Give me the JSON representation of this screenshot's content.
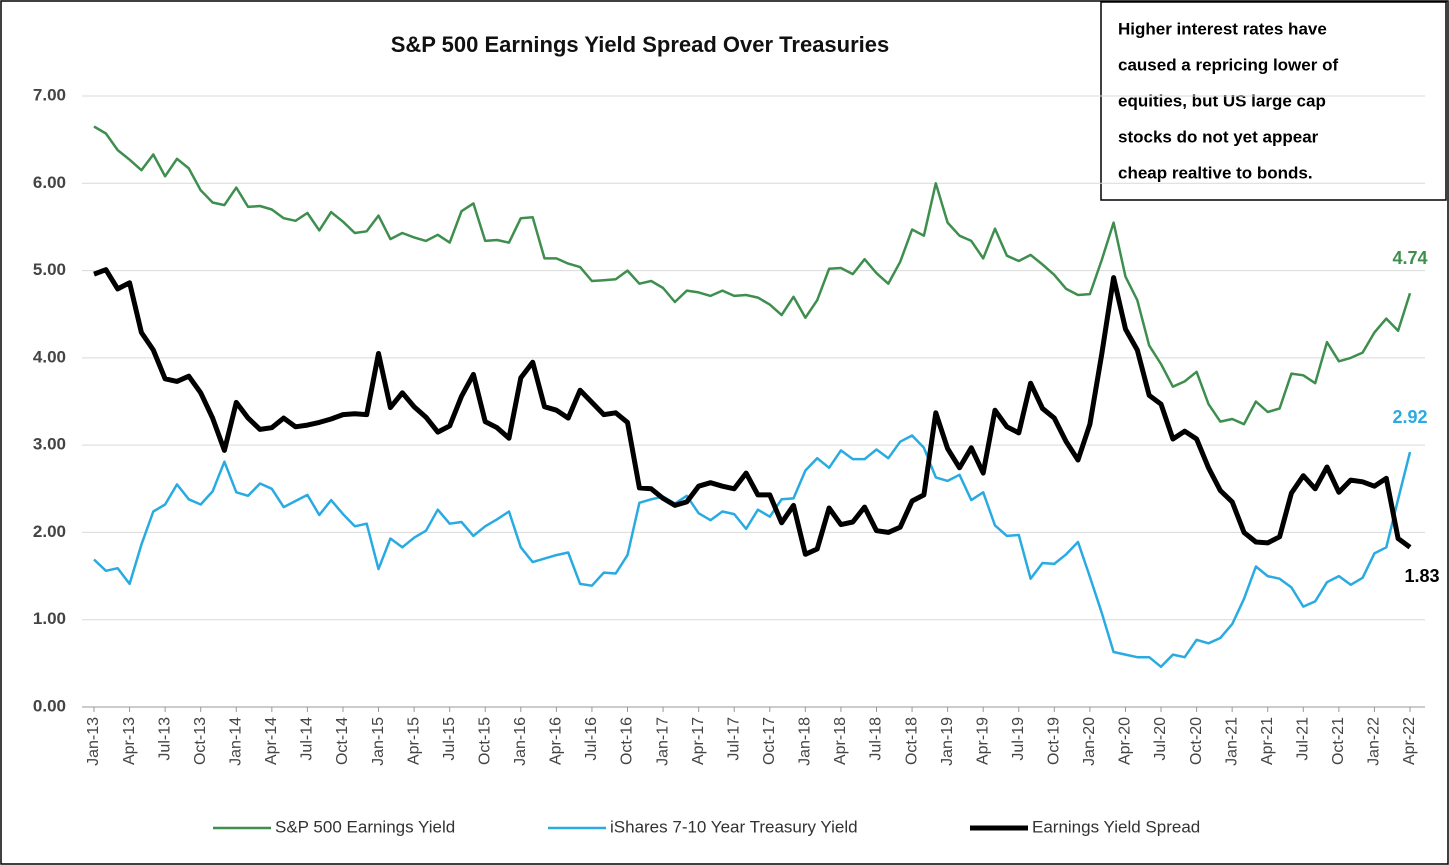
{
  "chart_data": {
    "type": "line",
    "title": "S&P 500 Earnings Yield Spread Over Treasuries",
    "annotation": [
      "Higher interest rates have",
      "caused a repricing lower of",
      "equities, but US large cap",
      "stocks do not yet appear",
      "cheap realtive to bonds."
    ],
    "categories": [
      "Jan-13",
      null,
      null,
      "Apr-13",
      null,
      null,
      "Jul-13",
      null,
      null,
      "Oct-13",
      null,
      null,
      "Jan-14",
      null,
      null,
      "Apr-14",
      null,
      null,
      "Jul-14",
      null,
      null,
      "Oct-14",
      null,
      null,
      "Jan-15",
      null,
      null,
      "Apr-15",
      null,
      null,
      "Jul-15",
      null,
      null,
      "Oct-15",
      null,
      null,
      "Jan-16",
      null,
      null,
      "Apr-16",
      null,
      null,
      "Jul-16",
      null,
      null,
      "Oct-16",
      null,
      null,
      "Jan-17",
      null,
      null,
      "Apr-17",
      null,
      null,
      "Jul-17",
      null,
      null,
      "Oct-17",
      null,
      null,
      "Jan-18",
      null,
      null,
      "Apr-18",
      null,
      null,
      "Jul-18",
      null,
      null,
      "Oct-18",
      null,
      null,
      "Jan-19",
      null,
      null,
      "Apr-19",
      null,
      null,
      "Jul-19",
      null,
      null,
      "Oct-19",
      null,
      null,
      "Jan-20",
      null,
      null,
      "Apr-20",
      null,
      null,
      "Jul-20",
      null,
      null,
      "Oct-20",
      null,
      null,
      "Jan-21",
      null,
      null,
      "Apr-21",
      null,
      null,
      "Jul-21",
      null,
      null,
      "Oct-21",
      null,
      null,
      "Jan-22",
      null,
      null,
      "Apr-22"
    ],
    "series": [
      {
        "name": "S&P 500 Earnings Yield",
        "color": "#3e8e4e",
        "width": 2.5,
        "values": [
          6.65,
          6.57,
          6.38,
          6.27,
          6.15,
          6.33,
          6.08,
          6.28,
          6.17,
          5.92,
          5.78,
          5.75,
          5.95,
          5.73,
          5.74,
          5.7,
          5.6,
          5.57,
          5.66,
          5.46,
          5.67,
          5.56,
          5.43,
          5.45,
          5.63,
          5.36,
          5.43,
          5.38,
          5.34,
          5.41,
          5.32,
          5.68,
          5.77,
          5.34,
          5.35,
          5.32,
          5.6,
          5.61,
          5.14,
          5.14,
          5.08,
          5.04,
          4.88,
          4.89,
          4.9,
          5.0,
          4.85,
          4.88,
          4.8,
          4.64,
          4.77,
          4.75,
          4.71,
          4.77,
          4.71,
          4.72,
          4.69,
          4.61,
          4.49,
          4.7,
          4.46,
          4.66,
          5.02,
          5.03,
          4.96,
          5.13,
          4.97,
          4.85,
          5.1,
          5.47,
          5.4,
          6.0,
          5.55,
          5.4,
          5.34,
          5.14,
          5.48,
          5.17,
          5.11,
          5.18,
          5.07,
          4.95,
          4.79,
          4.72,
          4.73,
          5.12,
          5.55,
          4.93,
          4.66,
          4.14,
          3.93,
          3.67,
          3.73,
          3.84,
          3.47,
          3.27,
          3.3,
          3.24,
          3.5,
          3.38,
          3.42,
          3.82,
          3.8,
          3.71,
          4.18,
          3.96,
          4.0,
          4.06,
          4.29,
          4.45,
          4.31,
          4.74
        ]
      },
      {
        "name": "iShares 7-10 Year Treasury Yield",
        "color": "#29abe2",
        "width": 2.5,
        "values": [
          1.69,
          1.56,
          1.59,
          1.41,
          1.86,
          2.24,
          2.32,
          2.55,
          2.38,
          2.32,
          2.47,
          2.81,
          2.46,
          2.42,
          2.56,
          2.5,
          2.29,
          2.36,
          2.43,
          2.2,
          2.37,
          2.21,
          2.07,
          2.1,
          1.58,
          1.93,
          1.83,
          1.94,
          2.02,
          2.26,
          2.1,
          2.12,
          1.96,
          2.07,
          2.15,
          2.24,
          1.83,
          1.66,
          1.7,
          1.74,
          1.77,
          1.41,
          1.39,
          1.54,
          1.53,
          1.74,
          2.34,
          2.38,
          2.41,
          2.33,
          2.42,
          2.22,
          2.14,
          2.24,
          2.21,
          2.04,
          2.26,
          2.18,
          2.38,
          2.39,
          2.71,
          2.85,
          2.74,
          2.94,
          2.84,
          2.84,
          2.95,
          2.85,
          3.04,
          3.11,
          2.97,
          2.63,
          2.59,
          2.66,
          2.37,
          2.46,
          2.08,
          1.96,
          1.97,
          1.47,
          1.65,
          1.64,
          1.75,
          1.89,
          1.49,
          1.08,
          0.63,
          0.6,
          0.57,
          0.57,
          0.46,
          0.6,
          0.57,
          0.77,
          0.73,
          0.79,
          0.95,
          1.24,
          1.61,
          1.5,
          1.47,
          1.37,
          1.15,
          1.21,
          1.43,
          1.5,
          1.4,
          1.48,
          1.76,
          1.83,
          2.38,
          2.92
        ]
      },
      {
        "name": "Earnings Yield Spread",
        "color": "#000000",
        "width": 5,
        "values": [
          4.96,
          5.01,
          4.79,
          4.86,
          4.29,
          4.09,
          3.76,
          3.73,
          3.79,
          3.6,
          3.31,
          2.94,
          3.49,
          3.31,
          3.18,
          3.2,
          3.31,
          3.21,
          3.23,
          3.26,
          3.3,
          3.35,
          3.36,
          3.35,
          4.05,
          3.43,
          3.6,
          3.44,
          3.32,
          3.15,
          3.22,
          3.56,
          3.81,
          3.27,
          3.2,
          3.08,
          3.77,
          3.95,
          3.44,
          3.4,
          3.31,
          3.63,
          3.49,
          3.35,
          3.37,
          3.26,
          2.51,
          2.5,
          2.39,
          2.31,
          2.35,
          2.53,
          2.57,
          2.53,
          2.5,
          2.68,
          2.43,
          2.43,
          2.11,
          2.31,
          1.75,
          1.81,
          2.28,
          2.09,
          2.12,
          2.29,
          2.02,
          2.0,
          2.06,
          2.36,
          2.43,
          3.37,
          2.96,
          2.74,
          2.97,
          2.68,
          3.4,
          3.21,
          3.14,
          3.71,
          3.42,
          3.31,
          3.04,
          2.83,
          3.24,
          4.04,
          4.92,
          4.33,
          4.09,
          3.57,
          3.47,
          3.07,
          3.16,
          3.07,
          2.74,
          2.48,
          2.35,
          2.0,
          1.89,
          1.88,
          1.95,
          2.45,
          2.65,
          2.5,
          2.75,
          2.46,
          2.6,
          2.58,
          2.53,
          2.62,
          1.93,
          1.83
        ]
      }
    ],
    "ylim": [
      0,
      7
    ],
    "yticks": [
      {
        "value": 0,
        "label": "0.00"
      },
      {
        "value": 1,
        "label": "1.00"
      },
      {
        "value": 2,
        "label": "2.00"
      },
      {
        "value": 3,
        "label": "3.00"
      },
      {
        "value": 4,
        "label": "4.00"
      },
      {
        "value": 5,
        "label": "5.00"
      },
      {
        "value": 6,
        "label": "6.00"
      },
      {
        "value": 7,
        "label": "7.00"
      }
    ],
    "grid": true,
    "legend": "bottom"
  }
}
